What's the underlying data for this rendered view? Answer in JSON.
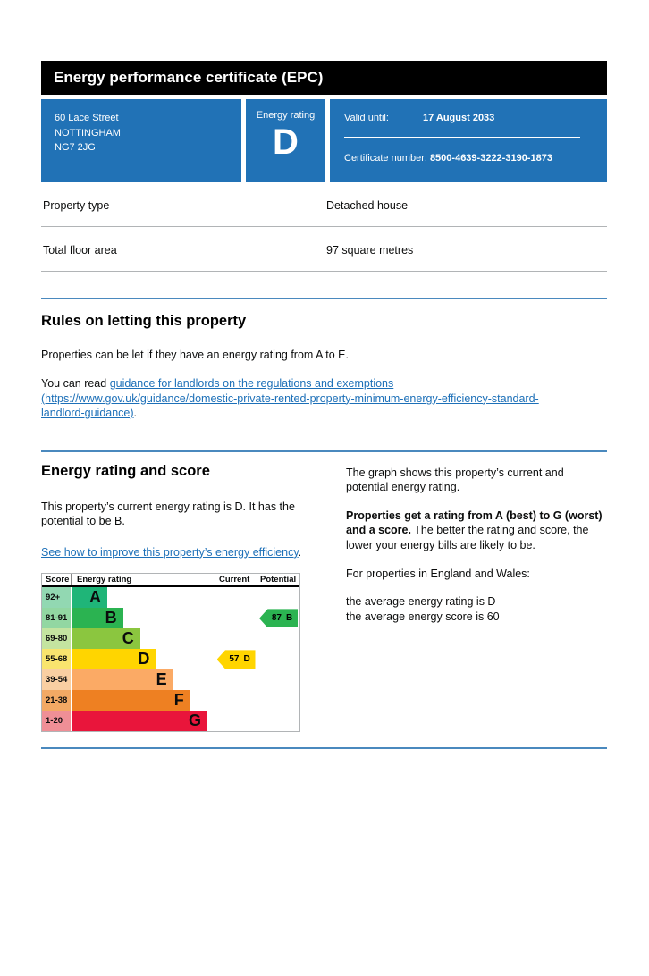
{
  "colors": {
    "panel_blue": "#2172b6",
    "rule_blue": "#4a89be",
    "link_blue": "#1d70b8",
    "divider_gray": "#b1b4b6"
  },
  "title_bar": {
    "title": "Energy performance certificate (EPC)"
  },
  "summary": {
    "address_lines": [
      "60 Lace Street",
      "NOTTINGHAM",
      "NG7 2JG"
    ],
    "rating_box": {
      "label": "Energy rating",
      "value": "D"
    },
    "valid_until": {
      "label": "Valid until:",
      "value": "17 August 2033"
    },
    "certificate": {
      "label": "Certificate number:",
      "value": "8500-4639-3222-3190-1873"
    }
  },
  "details": {
    "rows": [
      {
        "label": "Property type",
        "value": "Detached house"
      },
      {
        "label": "Total floor area",
        "value": "97 square metres"
      }
    ]
  },
  "rules": {
    "heading": "Rules on letting this property",
    "body": "Properties can be let if they have an energy rating from A to E.",
    "read_prefix": "You can read ",
    "link_text": "guidance for landlords on the regulations and exemptions (https://www.gov.uk/guidance/domestic-private-rented-property-minimum-energy-efficiency-standard-landlord-guidance)",
    "read_suffix": "."
  },
  "energy": {
    "heading": "Energy rating and score",
    "intro": "This property’s current energy rating is D. It has the potential to be B.",
    "link_text": "See how to improve this property’s energy efficiency",
    "link_suffix": ".",
    "right": {
      "p1": "The graph shows this property’s current and potential energy rating.",
      "p2_bold": "Properties get a rating from A (best) to G (worst) and a score.",
      "p2_rest": " The better the rating and score, the lower your energy bills are likely to be.",
      "p3": "For properties in England and Wales:",
      "p4_line1": "the average energy rating is D",
      "p4_line2": "the average energy score is 60"
    }
  },
  "chart_data": {
    "type": "epc-rating-bands",
    "columns": [
      "Score",
      "Energy rating",
      "Current",
      "Potential"
    ],
    "bands": [
      {
        "score_label": "92+",
        "letter": "A",
        "color": "#1fb578",
        "tint": "#92d8b2",
        "bar_width_pct": 25
      },
      {
        "score_label": "81-91",
        "letter": "B",
        "color": "#2bb351",
        "tint": "#92d7a2",
        "bar_width_pct": 36
      },
      {
        "score_label": "69-80",
        "letter": "C",
        "color": "#8bc63f",
        "tint": "#c4e4a0",
        "bar_width_pct": 48
      },
      {
        "score_label": "55-68",
        "letter": "D",
        "color": "#ffd500",
        "tint": "#f9e46e",
        "bar_width_pct": 59
      },
      {
        "score_label": "39-54",
        "letter": "E",
        "color": "#fbaa65",
        "tint": "#f9cfa2",
        "bar_width_pct": 71
      },
      {
        "score_label": "21-38",
        "letter": "F",
        "color": "#ee8022",
        "tint": "#f2a964",
        "bar_width_pct": 83
      },
      {
        "score_label": "1-20",
        "letter": "G",
        "color": "#e9153b",
        "tint": "#ef8f96",
        "bar_width_pct": 95
      }
    ],
    "current": {
      "label": "Current",
      "score": "57",
      "letter": "D",
      "band_color": "#ffd500"
    },
    "potential": {
      "label": "Potential",
      "score": "87",
      "letter": "B",
      "band_color": "#2bb351"
    }
  }
}
